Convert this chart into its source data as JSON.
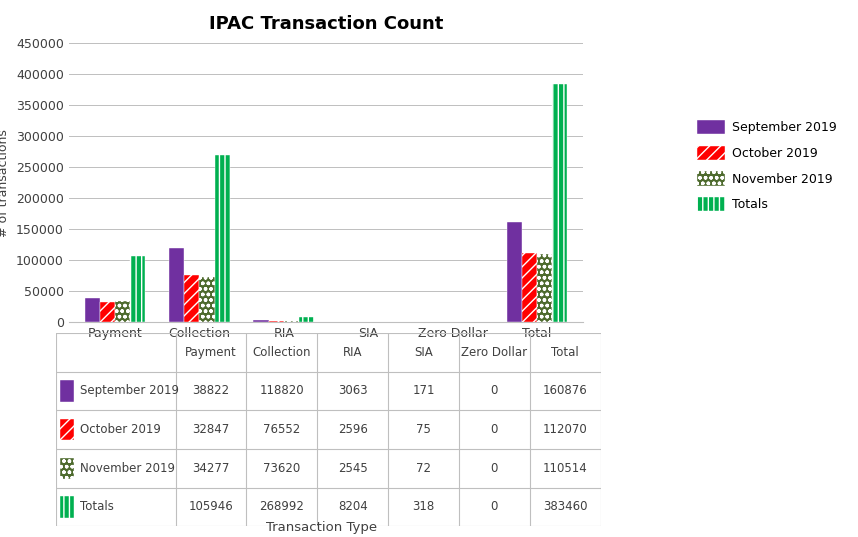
{
  "title": "IPAC Transaction Count",
  "xlabel": "Transaction Type",
  "ylabel": "# of transactions",
  "categories": [
    "Payment",
    "Collection",
    "RIA",
    "SIA",
    "Zero Dollar",
    "Total"
  ],
  "series_names": [
    "September 2019",
    "October 2019",
    "November 2019",
    "Totals"
  ],
  "series": {
    "September 2019": [
      38822,
      118820,
      3063,
      171,
      0,
      160876
    ],
    "October 2019": [
      32847,
      76552,
      2596,
      75,
      0,
      112070
    ],
    "November 2019": [
      34277,
      73620,
      2545,
      72,
      0,
      110514
    ],
    "Totals": [
      105946,
      268992,
      8204,
      318,
      0,
      383460
    ]
  },
  "bar_styles": [
    {
      "facecolor": "#7030A0",
      "edgecolor": "#FFFFFF",
      "hatch": "===",
      "label_color": "#7030A0"
    },
    {
      "facecolor": "#FF0000",
      "edgecolor": "#FFFFFF",
      "hatch": "///",
      "label_color": "#FF0000"
    },
    {
      "facecolor": "#4E6B2E",
      "edgecolor": "#FFFFFF",
      "hatch": "ooo",
      "label_color": "#375623"
    },
    {
      "facecolor": "#00B050",
      "edgecolor": "#FFFFFF",
      "hatch": "|||",
      "label_color": "#00B050"
    }
  ],
  "ylim": [
    0,
    450000
  ],
  "yticks": [
    0,
    50000,
    100000,
    150000,
    200000,
    250000,
    300000,
    350000,
    400000,
    450000
  ],
  "table_data": {
    "September 2019": [
      38822,
      118820,
      3063,
      171,
      0,
      160876
    ],
    "October 2019": [
      32847,
      76552,
      2596,
      75,
      0,
      112070
    ],
    "November 2019": [
      34277,
      73620,
      2545,
      72,
      0,
      110514
    ],
    "Totals": [
      105946,
      268992,
      8204,
      318,
      0,
      383460
    ]
  },
  "background_color": "#FFFFFF",
  "grid_color": "#BFBFBF"
}
